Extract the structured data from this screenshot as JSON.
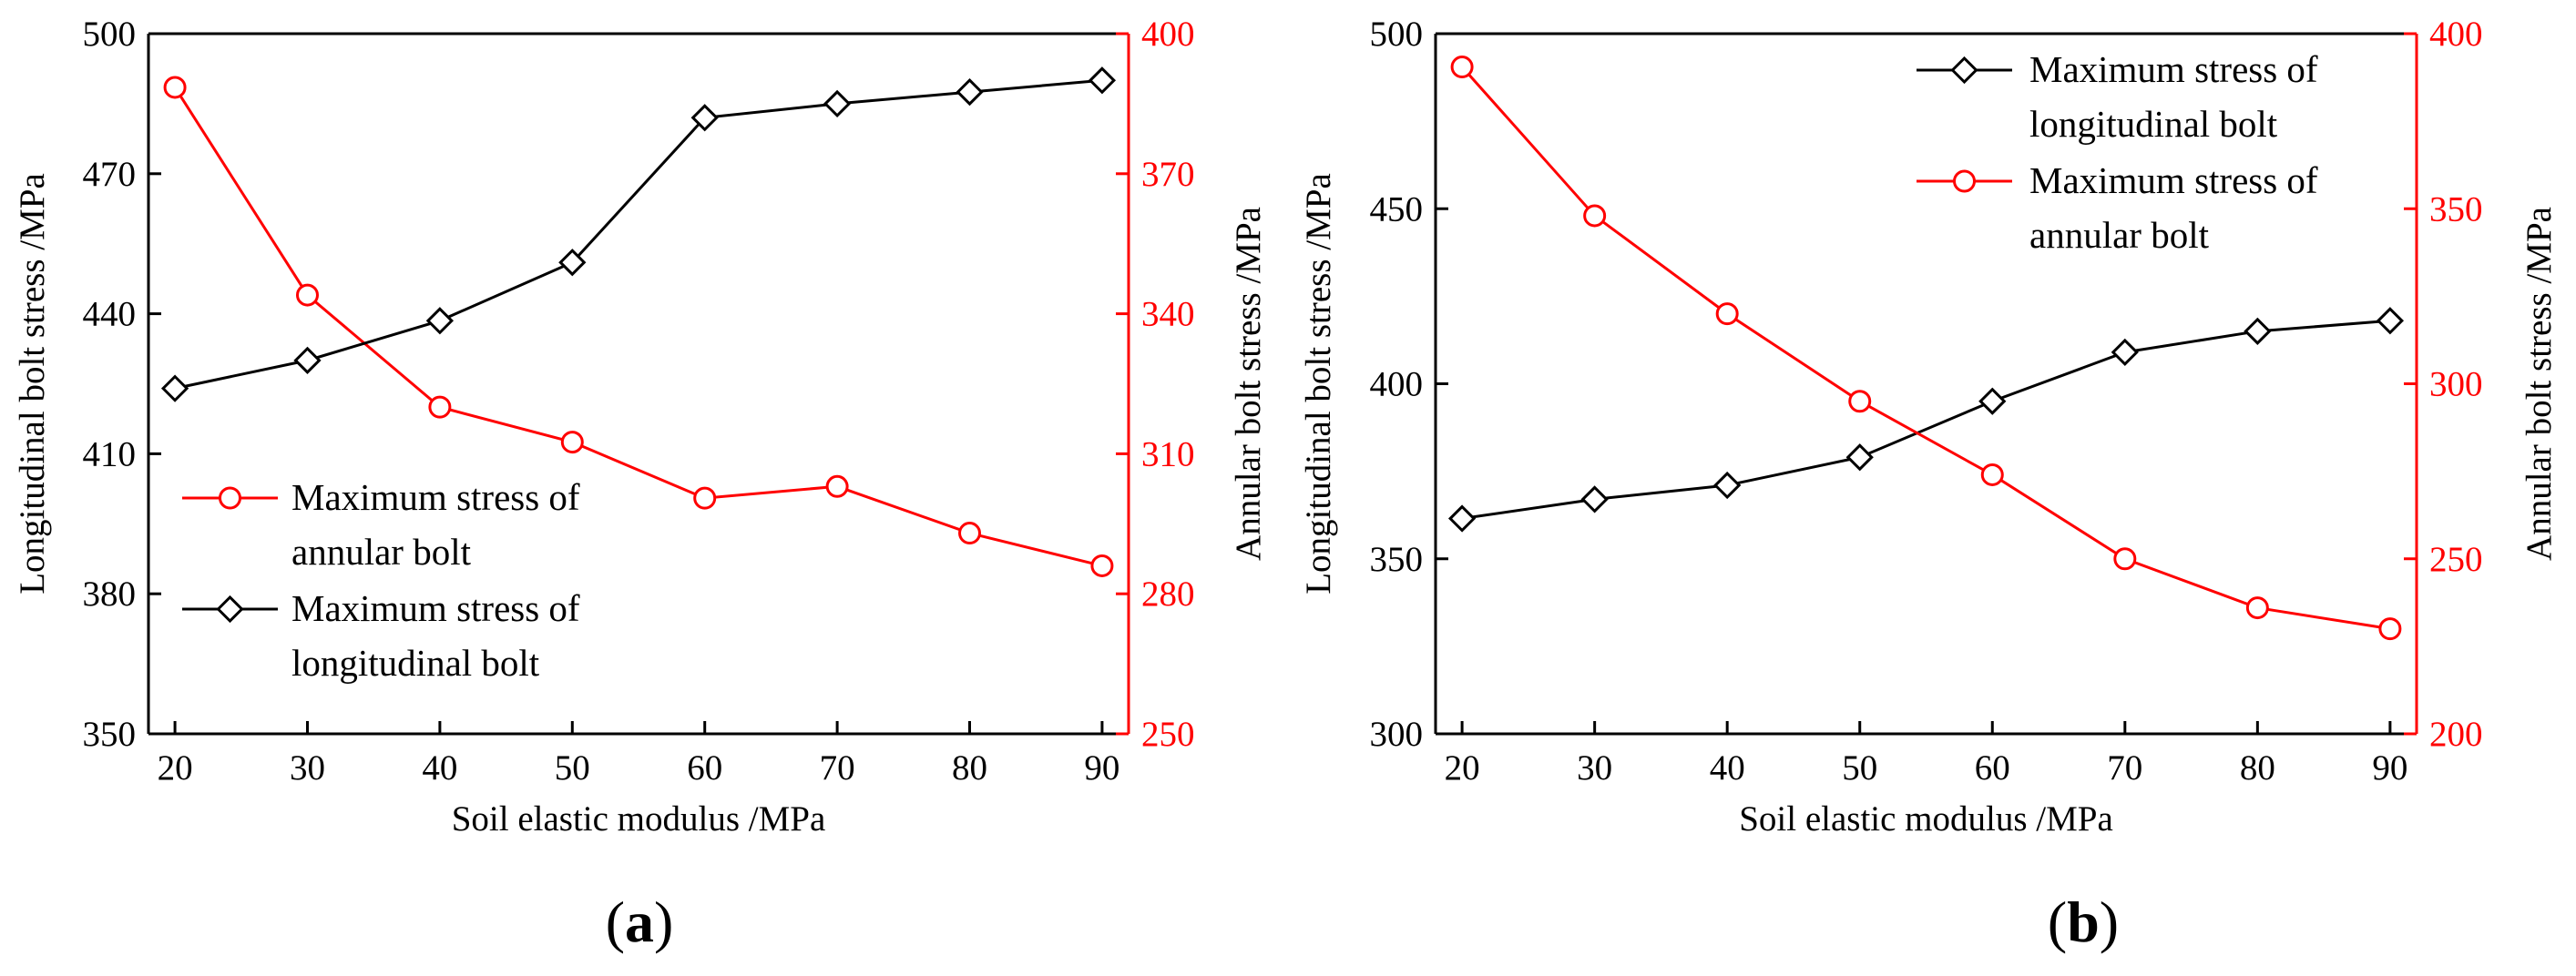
{
  "chart_data": [
    {
      "type": "line",
      "panel_label": "a",
      "x": [
        20,
        30,
        40,
        50,
        60,
        70,
        80,
        90
      ],
      "xlabel": "Soil elastic modulus /MPa",
      "xlim": [
        18,
        92
      ],
      "xticks": [
        "20",
        "30",
        "40",
        "50",
        "60",
        "70",
        "80",
        "90"
      ],
      "ylabel": "Longitudinal bolt stress /MPa",
      "ylim": [
        350,
        500
      ],
      "yticks": [
        "350",
        "380",
        "410",
        "440",
        "470",
        "500"
      ],
      "y2label": "Annular bolt stress /MPa",
      "y2lim": [
        250,
        400
      ],
      "y2ticks": [
        "250",
        "280",
        "310",
        "340",
        "370",
        "400"
      ],
      "legend_position": "lower-left",
      "series": [
        {
          "name": "Maximum stress of annular bolt",
          "legend_lines": [
            "Maximum stress of",
            "annular bolt"
          ],
          "axis": "right",
          "marker": "circle",
          "color": "#ff0000",
          "values": [
            388.5,
            344,
            320,
            312.5,
            300.5,
            303,
            293,
            286
          ]
        },
        {
          "name": "Maximum stress of longitudinal bolt",
          "legend_lines": [
            "Maximum stress of",
            "longitudinal bolt"
          ],
          "axis": "left",
          "marker": "diamond",
          "color": "#000000",
          "values": [
            424,
            430,
            438.5,
            451,
            482,
            485,
            487.5,
            490
          ]
        }
      ]
    },
    {
      "type": "line",
      "panel_label": "b",
      "x": [
        20,
        30,
        40,
        50,
        60,
        70,
        80,
        90
      ],
      "xlabel": "Soil elastic modulus /MPa",
      "xlim": [
        18,
        92
      ],
      "xticks": [
        "20",
        "30",
        "40",
        "50",
        "60",
        "70",
        "80",
        "90"
      ],
      "ylabel": "Longitudinal bolt stress /MPa",
      "ylim": [
        300,
        500
      ],
      "yticks": [
        "300",
        "350",
        "400",
        "450",
        "500"
      ],
      "y2label": "Annular bolt stress /MPa",
      "y2lim": [
        200,
        400
      ],
      "y2ticks": [
        "200",
        "250",
        "300",
        "350",
        "400"
      ],
      "legend_position": "upper-center",
      "series": [
        {
          "name": "Maximum stress of longitudinal bolt",
          "legend_lines": [
            "Maximum stress of",
            "longitudinal bolt"
          ],
          "axis": "left",
          "marker": "diamond",
          "color": "#000000",
          "values": [
            361.5,
            367,
            371,
            379,
            395,
            409,
            415,
            418
          ]
        },
        {
          "name": "Maximum stress of annular bolt",
          "legend_lines": [
            "Maximum stress of",
            "annular bolt"
          ],
          "axis": "right",
          "marker": "circle",
          "color": "#ff0000",
          "values": [
            390.5,
            348,
            320,
            295,
            274,
            250,
            236,
            230
          ]
        }
      ]
    }
  ]
}
